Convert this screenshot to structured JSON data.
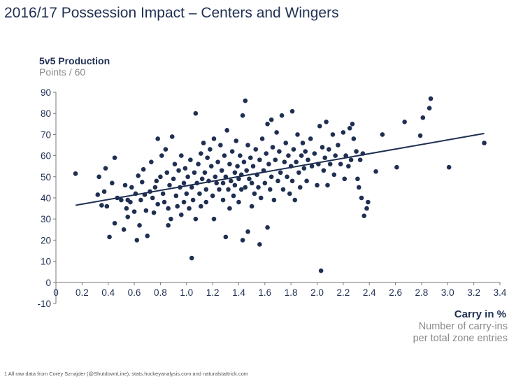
{
  "title": "2016/17 Possession Impact – Centers and Wingers",
  "footnote": "1 All raw data from Corey Sznajder (@ShutdownLine), stats.hockeyanalysis.com and naturalstattrick.com",
  "colors": {
    "marker": "#1f2f52",
    "trendline": "#1f2f52",
    "text": "#1f2f52",
    "subtext": "#8a8a8a"
  },
  "chart_data": {
    "type": "scatter",
    "title": "2016/17 Possession Impact – Centers and Wingers",
    "ylabel": "5v5 Production",
    "ylabel_sub": "Points / 60",
    "xlabel": "Carry in %",
    "xlabel_sub": [
      "Number of carry-ins",
      "per total zone entries"
    ],
    "xlim": [
      0,
      3.4
    ],
    "ylim": [
      -10,
      90
    ],
    "x_ticks": [
      "0",
      "0.2",
      "0.4",
      "0.6",
      "0.8",
      "1.0",
      "1.2",
      "1.4",
      "1.6",
      "1.8",
      "2.0",
      "2.2",
      "2.4",
      "2.6",
      "2.8",
      "3.0",
      "3.2",
      "3.4"
    ],
    "x_tick_values": [
      0,
      0.2,
      0.4,
      0.6,
      0.8,
      1.0,
      1.2,
      1.4,
      1.6,
      1.8,
      2.0,
      2.2,
      2.4,
      2.6,
      2.8,
      3.0,
      3.2,
      3.4
    ],
    "y_ticks": [
      "-10",
      "0",
      "10",
      "20",
      "30",
      "40",
      "50",
      "60",
      "70",
      "80",
      "90"
    ],
    "y_tick_values": [
      -10,
      0,
      10,
      20,
      30,
      40,
      50,
      60,
      70,
      80,
      90
    ],
    "trendline": {
      "x": [
        0.15,
        3.28
      ],
      "y": [
        36.5,
        70.5
      ]
    },
    "grid": false,
    "points": [
      [
        0.15,
        51.5
      ],
      [
        0.32,
        41.5
      ],
      [
        0.33,
        50
      ],
      [
        0.35,
        36.5
      ],
      [
        0.37,
        43
      ],
      [
        0.38,
        54
      ],
      [
        0.39,
        36
      ],
      [
        0.41,
        21.5
      ],
      [
        0.43,
        47
      ],
      [
        0.45,
        59
      ],
      [
        0.45,
        28
      ],
      [
        0.47,
        40
      ],
      [
        0.5,
        39
      ],
      [
        0.52,
        25
      ],
      [
        0.53,
        46
      ],
      [
        0.54,
        35
      ],
      [
        0.55,
        31
      ],
      [
        0.55,
        39
      ],
      [
        0.57,
        38
      ],
      [
        0.58,
        45
      ],
      [
        0.6,
        33.5
      ],
      [
        0.61,
        42
      ],
      [
        0.62,
        20
      ],
      [
        0.63,
        50.5
      ],
      [
        0.64,
        27
      ],
      [
        0.65,
        39
      ],
      [
        0.66,
        47.5
      ],
      [
        0.67,
        53.5
      ],
      [
        0.68,
        41.5
      ],
      [
        0.69,
        34
      ],
      [
        0.7,
        22
      ],
      [
        0.72,
        43
      ],
      [
        0.73,
        57
      ],
      [
        0.74,
        40
      ],
      [
        0.75,
        33
      ],
      [
        0.76,
        45
      ],
      [
        0.77,
        48
      ],
      [
        0.78,
        68
      ],
      [
        0.78,
        37
      ],
      [
        0.8,
        50
      ],
      [
        0.81,
        60
      ],
      [
        0.82,
        42
      ],
      [
        0.83,
        38
      ],
      [
        0.84,
        63
      ],
      [
        0.85,
        52
      ],
      [
        0.86,
        27
      ],
      [
        0.86,
        35
      ],
      [
        0.87,
        46
      ],
      [
        0.88,
        30
      ],
      [
        0.89,
        69
      ],
      [
        0.9,
        49
      ],
      [
        0.91,
        56
      ],
      [
        0.92,
        41
      ],
      [
        0.93,
        36
      ],
      [
        0.94,
        53
      ],
      [
        0.95,
        45
      ],
      [
        0.96,
        32
      ],
      [
        0.96,
        60
      ],
      [
        0.98,
        47
      ],
      [
        0.98,
        38
      ],
      [
        0.99,
        54
      ],
      [
        1.0,
        42
      ],
      [
        1.01,
        50
      ],
      [
        1.02,
        35
      ],
      [
        1.03,
        58
      ],
      [
        1.04,
        11.5
      ],
      [
        1.04,
        45
      ],
      [
        1.05,
        39
      ],
      [
        1.06,
        52
      ],
      [
        1.07,
        80
      ],
      [
        1.07,
        30
      ],
      [
        1.08,
        47
      ],
      [
        1.09,
        56
      ],
      [
        1.1,
        42
      ],
      [
        1.11,
        61
      ],
      [
        1.11,
        36
      ],
      [
        1.12,
        49
      ],
      [
        1.13,
        66
      ],
      [
        1.14,
        52
      ],
      [
        1.15,
        44
      ],
      [
        1.15,
        38
      ],
      [
        1.16,
        59
      ],
      [
        1.17,
        48
      ],
      [
        1.18,
        63
      ],
      [
        1.19,
        55
      ],
      [
        1.2,
        41
      ],
      [
        1.21,
        68
      ],
      [
        1.21,
        30
      ],
      [
        1.22,
        50
      ],
      [
        1.23,
        47
      ],
      [
        1.24,
        57
      ],
      [
        1.25,
        44
      ],
      [
        1.26,
        65
      ],
      [
        1.27,
        53
      ],
      [
        1.28,
        39
      ],
      [
        1.28,
        47
      ],
      [
        1.29,
        60
      ],
      [
        1.3,
        21.5
      ],
      [
        1.3,
        50
      ],
      [
        1.31,
        72
      ],
      [
        1.32,
        44
      ],
      [
        1.33,
        56
      ],
      [
        1.33,
        35
      ],
      [
        1.34,
        48
      ],
      [
        1.35,
        62
      ],
      [
        1.36,
        41
      ],
      [
        1.37,
        52
      ],
      [
        1.37,
        46
      ],
      [
        1.38,
        67
      ],
      [
        1.39,
        55
      ],
      [
        1.4,
        49
      ],
      [
        1.4,
        38
      ],
      [
        1.41,
        60
      ],
      [
        1.42,
        44
      ],
      [
        1.42,
        51
      ],
      [
        1.43,
        79
      ],
      [
        1.43,
        20
      ],
      [
        1.44,
        57
      ],
      [
        1.45,
        86
      ],
      [
        1.45,
        45
      ],
      [
        1.46,
        53
      ],
      [
        1.47,
        65
      ],
      [
        1.47,
        24
      ],
      [
        1.48,
        49
      ],
      [
        1.49,
        59
      ],
      [
        1.5,
        47
      ],
      [
        1.5,
        36
      ],
      [
        1.51,
        55
      ],
      [
        1.52,
        42
      ],
      [
        1.53,
        63
      ],
      [
        1.54,
        51
      ],
      [
        1.55,
        45
      ],
      [
        1.56,
        18
      ],
      [
        1.56,
        58
      ],
      [
        1.57,
        40
      ],
      [
        1.58,
        68
      ],
      [
        1.59,
        53
      ],
      [
        1.6,
        47
      ],
      [
        1.61,
        61
      ],
      [
        1.62,
        75
      ],
      [
        1.62,
        26
      ],
      [
        1.63,
        56
      ],
      [
        1.64,
        44
      ],
      [
        1.65,
        77
      ],
      [
        1.65,
        50
      ],
      [
        1.66,
        64
      ],
      [
        1.67,
        39
      ],
      [
        1.68,
        58
      ],
      [
        1.69,
        71
      ],
      [
        1.7,
        48
      ],
      [
        1.71,
        62
      ],
      [
        1.72,
        52
      ],
      [
        1.73,
        79
      ],
      [
        1.74,
        44
      ],
      [
        1.75,
        57
      ],
      [
        1.76,
        66
      ],
      [
        1.77,
        50
      ],
      [
        1.78,
        60
      ],
      [
        1.79,
        42
      ],
      [
        1.8,
        55
      ],
      [
        1.81,
        81
      ],
      [
        1.81,
        48
      ],
      [
        1.82,
        63
      ],
      [
        1.83,
        39
      ],
      [
        1.84,
        57
      ],
      [
        1.85,
        70
      ],
      [
        1.86,
        52
      ],
      [
        1.87,
        45
      ],
      [
        1.88,
        60
      ],
      [
        1.89,
        66
      ],
      [
        1.9,
        54
      ],
      [
        1.91,
        62
      ],
      [
        1.92,
        48
      ],
      [
        1.93,
        58
      ],
      [
        1.95,
        68
      ],
      [
        1.96,
        55
      ],
      [
        1.98,
        61
      ],
      [
        2.0,
        46
      ],
      [
        2.01,
        56
      ],
      [
        2.02,
        74
      ],
      [
        2.03,
        5.5
      ],
      [
        2.04,
        64
      ],
      [
        2.05,
        53
      ],
      [
        2.06,
        59
      ],
      [
        2.07,
        76
      ],
      [
        2.08,
        46
      ],
      [
        2.09,
        63
      ],
      [
        2.1,
        56
      ],
      [
        2.12,
        70
      ],
      [
        2.13,
        51
      ],
      [
        2.14,
        60
      ],
      [
        2.16,
        65
      ],
      [
        2.18,
        56
      ],
      [
        2.2,
        71
      ],
      [
        2.21,
        49
      ],
      [
        2.22,
        60
      ],
      [
        2.24,
        55
      ],
      [
        2.25,
        73
      ],
      [
        2.26,
        58
      ],
      [
        2.27,
        75
      ],
      [
        2.28,
        68
      ],
      [
        2.3,
        62
      ],
      [
        2.31,
        49
      ],
      [
        2.32,
        45
      ],
      [
        2.33,
        58
      ],
      [
        2.34,
        40
      ],
      [
        2.35,
        61
      ],
      [
        2.36,
        31.5
      ],
      [
        2.38,
        35
      ],
      [
        2.39,
        38
      ],
      [
        2.45,
        52.5
      ],
      [
        2.5,
        70
      ],
      [
        2.61,
        54.5
      ],
      [
        2.67,
        76
      ],
      [
        2.79,
        69.5
      ],
      [
        2.81,
        78
      ],
      [
        2.86,
        82.5
      ],
      [
        2.87,
        87
      ],
      [
        3.01,
        54.5
      ],
      [
        3.28,
        66
      ]
    ]
  }
}
